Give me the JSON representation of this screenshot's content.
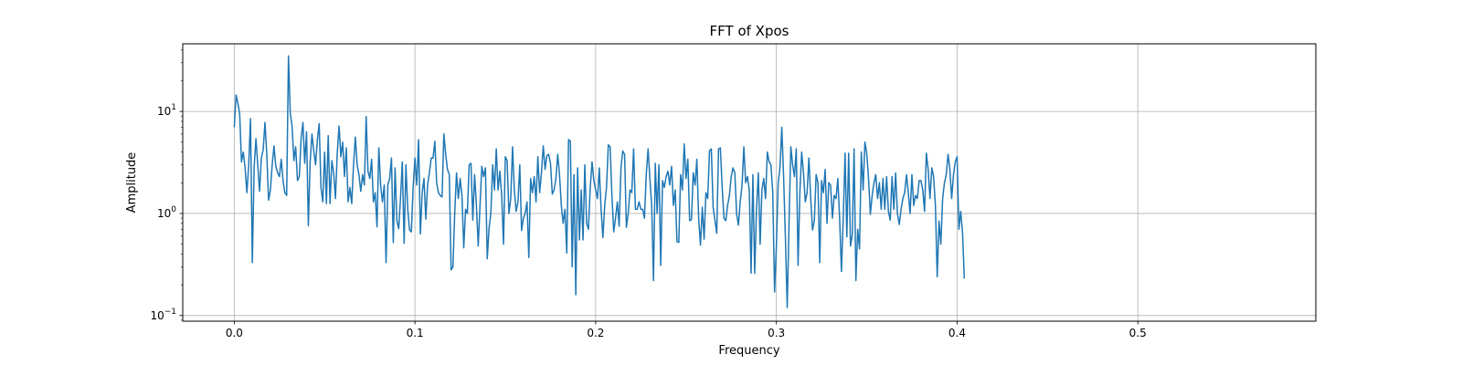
{
  "chart_data": {
    "type": "line",
    "title": "FFT of Xpos",
    "xlabel": "Frequency",
    "ylabel": "Amplitude",
    "xscale": "linear",
    "yscale": "log",
    "xlim": [
      -0.0285,
      0.5985
    ],
    "ylim": [
      0.088,
      46
    ],
    "grid": true,
    "legend": "none",
    "line_color": "#1f77b4",
    "x_ticks": [
      {
        "value": 0.0,
        "label": "0.0"
      },
      {
        "value": 0.1,
        "label": "0.1"
      },
      {
        "value": 0.2,
        "label": "0.2"
      },
      {
        "value": 0.3,
        "label": "0.3"
      },
      {
        "value": 0.4,
        "label": "0.4"
      },
      {
        "value": 0.5,
        "label": "0.5"
      }
    ],
    "y_ticks": [
      {
        "value": 0.1,
        "label_base": "10",
        "label_exp": "−1"
      },
      {
        "value": 1,
        "label_base": "10",
        "label_exp": "0"
      },
      {
        "value": 10,
        "label_base": "10",
        "label_exp": "1"
      }
    ],
    "x_start": 0.0,
    "x_step": 0.001,
    "series": [
      {
        "values": [
          7.0,
          14.5,
          12.0,
          9.5,
          3.2,
          4.0,
          2.8,
          1.6,
          3.0,
          8.5,
          0.33,
          2.8,
          5.4,
          3.0,
          1.65,
          3.5,
          4.2,
          7.8,
          3.8,
          1.35,
          1.7,
          3.0,
          4.6,
          2.9,
          2.5,
          2.3,
          3.4,
          2.1,
          1.6,
          1.5,
          35.0,
          9.6,
          7.2,
          3.3,
          4.5,
          2.1,
          2.3,
          5.4,
          7.8,
          3.1,
          6.3,
          0.76,
          3.2,
          6.0,
          4.1,
          3.0,
          5.3,
          7.6,
          1.8,
          1.3,
          4.0,
          1.25,
          5.8,
          1.25,
          3.3,
          2.5,
          1.4,
          3.9,
          7.2,
          3.6,
          5.0,
          2.3,
          4.4,
          1.3,
          1.8,
          1.25,
          3.0,
          5.6,
          3.0,
          2.4,
          1.65,
          2.4,
          1.9,
          8.9,
          2.6,
          2.2,
          3.4,
          1.3,
          1.6,
          0.74,
          4.4,
          1.9,
          1.3,
          1.9,
          0.33,
          1.9,
          2.2,
          3.5,
          0.52,
          2.8,
          0.85,
          0.71,
          1.4,
          3.2,
          0.51,
          3.0,
          1.1,
          0.69,
          0.66,
          1.8,
          3.5,
          1.9,
          5.3,
          0.63,
          1.6,
          2.2,
          0.88,
          1.9,
          2.5,
          3.5,
          3.5,
          5.1,
          2.0,
          1.6,
          1.5,
          1.45,
          6.0,
          3.8,
          2.7,
          2.4,
          0.28,
          0.3,
          1.0,
          2.5,
          1.4,
          2.2,
          1.5,
          0.46,
          1.1,
          1.0,
          3.0,
          3.1,
          0.86,
          2.4,
          1.2,
          0.48,
          1.2,
          2.9,
          2.3,
          2.8,
          0.36,
          0.72,
          1.0,
          3.0,
          1.7,
          4.3,
          1.7,
          2.6,
          1.5,
          0.5,
          3.6,
          3.3,
          1.0,
          1.4,
          4.5,
          1.7,
          1.05,
          1.3,
          3.0,
          0.68,
          0.9,
          1.0,
          1.3,
          0.37,
          2.2,
          1.6,
          2.3,
          1.3,
          3.6,
          1.6,
          2.5,
          4.6,
          2.7,
          3.7,
          3.8,
          3.1,
          1.55,
          1.7,
          2.2,
          3.8,
          2.4,
          1.2,
          0.8,
          1.1,
          0.41,
          5.3,
          5.1,
          0.3,
          2.4,
          0.16,
          2.8,
          0.55,
          1.7,
          0.55,
          3.0,
          0.8,
          0.7,
          1.8,
          3.2,
          2.1,
          1.7,
          1.4,
          2.8,
          1.1,
          0.58,
          1.2,
          1.8,
          4.7,
          4.5,
          1.5,
          0.66,
          0.9,
          1.3,
          0.75,
          2.8,
          4.1,
          3.8,
          0.73,
          1.0,
          1.7,
          1.6,
          4.3,
          1.1,
          1.1,
          1.3,
          1.1,
          1.1,
          0.9,
          2.4,
          4.3,
          2.2,
          1.2,
          0.22,
          3.1,
          1.0,
          3.0,
          0.31,
          2.1,
          1.8,
          2.3,
          2.6,
          1.9,
          2.9,
          1.2,
          1.7,
          0.53,
          0.52,
          2.4,
          1.7,
          4.8,
          2.2,
          3.4,
          0.85,
          0.87,
          2.5,
          1.9,
          3.4,
          0.88,
          0.49,
          1.15,
          0.56,
          1.6,
          1.4,
          4.1,
          4.3,
          1.15,
          0.86,
          0.64,
          4.3,
          4.4,
          1.8,
          0.9,
          0.85,
          1.2,
          1.5,
          2.3,
          2.8,
          2.5,
          0.99,
          0.77,
          1.3,
          1.9,
          4.5,
          2.0,
          2.3,
          1.7,
          0.26,
          2.4,
          0.26,
          1.1,
          2.5,
          0.5,
          1.7,
          2.2,
          1.4,
          4.0,
          3.2,
          3.0,
          1.6,
          0.17,
          0.48,
          2.0,
          2.8,
          7.0,
          2.3,
          0.57,
          0.12,
          0.8,
          4.5,
          3.0,
          2.3,
          4.3,
          0.31,
          1.6,
          4.0,
          2.5,
          1.3,
          1.6,
          3.5,
          1.4,
          0.69,
          0.85,
          2.4,
          2.0,
          0.33,
          2.1,
          1.6,
          2.7,
          0.8,
          2.0,
          1.9,
          0.9,
          1.5,
          1.4,
          2.2,
          0.9,
          0.27,
          0.9,
          3.9,
          0.59,
          3.9,
          0.48,
          0.62,
          4.3,
          0.22,
          0.7,
          0.45,
          4.0,
          1.7,
          5.0,
          3.9,
          2.2,
          0.98,
          1.5,
          2.0,
          2.4,
          1.4,
          2.0,
          1.1,
          2.2,
          1.1,
          2.3,
          1.05,
          0.86,
          2.3,
          1.1,
          2.5,
          0.99,
          0.78,
          1.1,
          1.4,
          1.6,
          2.4,
          1.6,
          1.0,
          2.4,
          1.2,
          1.5,
          1.4,
          2.1,
          2.1,
          1.7,
          1.05,
          3.9,
          2.7,
          1.4,
          2.8,
          2.3,
          1.2,
          0.24,
          0.84,
          0.5,
          1.4,
          2.0,
          2.4,
          3.8,
          2.7,
          1.4,
          2.4,
          3.2,
          3.6,
          0.7,
          1.05,
          0.65,
          0.23
        ]
      }
    ]
  }
}
